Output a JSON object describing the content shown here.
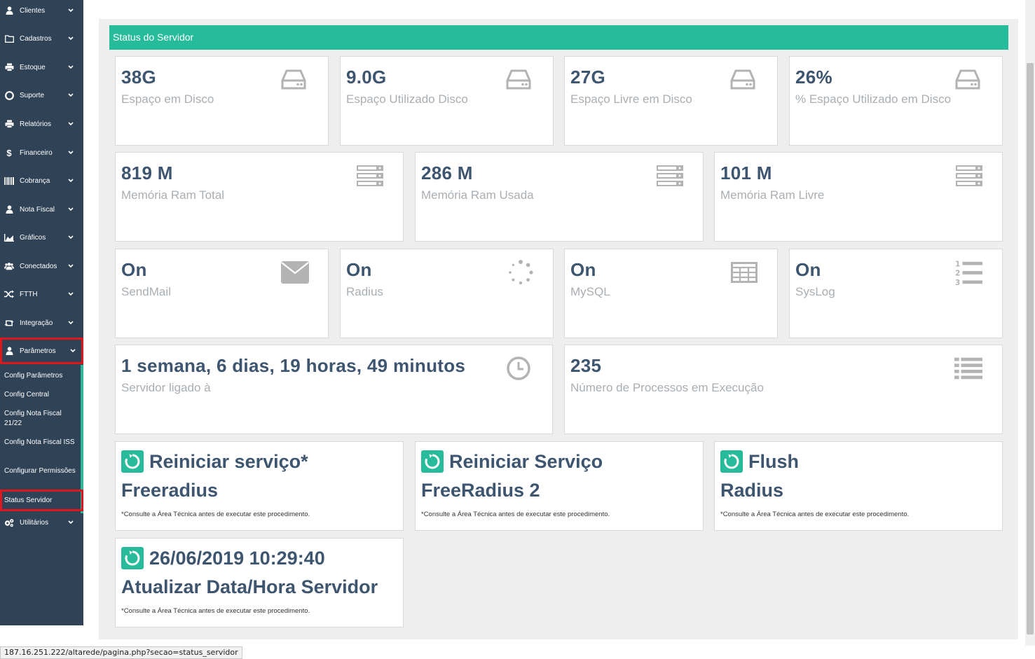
{
  "sidebar": {
    "items": [
      {
        "label": "Clientes",
        "icon": "user-icon"
      },
      {
        "label": "Cadastros",
        "icon": "folder-icon"
      },
      {
        "label": "Estoque",
        "icon": "printer-icon"
      },
      {
        "label": "Suporte",
        "icon": "lifebuoy-icon"
      },
      {
        "label": "Relatórios",
        "icon": "printer-icon"
      },
      {
        "label": "Financeiro",
        "icon": "dollar-icon"
      },
      {
        "label": "Cobrança",
        "icon": "barcode-icon"
      },
      {
        "label": "Nota Fiscal",
        "icon": "user-icon"
      },
      {
        "label": "Gráficos",
        "icon": "area-chart-icon"
      },
      {
        "label": "Conectados",
        "icon": "users-icon"
      },
      {
        "label": "FTTH",
        "icon": "random-icon"
      },
      {
        "label": "Integração",
        "icon": "retweet-icon"
      },
      {
        "label": "Parâmetros",
        "icon": "user-icon"
      },
      {
        "label": "Utilitários",
        "icon": "cogs-icon"
      }
    ],
    "submenu": [
      {
        "label": "Config Parâmetros"
      },
      {
        "label": "Config Central"
      },
      {
        "label": "Config Nota Fiscal 21/22"
      },
      {
        "label": "Config Nota Fiscal ISS"
      },
      {
        "label": "Configurar Permissões"
      },
      {
        "label": "Status Servidor"
      }
    ]
  },
  "panel": {
    "title": "Status do Servidor"
  },
  "disk": [
    {
      "value": "38G",
      "label": "Espaço em Disco",
      "icon": "hdd-icon"
    },
    {
      "value": "9.0G",
      "label": "Espaço Utilizado Disco",
      "icon": "hdd-icon"
    },
    {
      "value": "27G",
      "label": "Espaço Livre em Disco",
      "icon": "hdd-icon"
    },
    {
      "value": "26%",
      "label": "% Espaço Utilizado em Disco",
      "icon": "hdd-icon"
    }
  ],
  "memory": [
    {
      "value": "819 M",
      "label": "Memória Ram Total",
      "icon": "server-icon"
    },
    {
      "value": "286 M",
      "label": "Memória Ram Usada",
      "icon": "server-icon"
    },
    {
      "value": "101 M",
      "label": "Memória Ram Livre",
      "icon": "server-icon"
    }
  ],
  "services": [
    {
      "value": "On",
      "label": "SendMail",
      "icon": "envelope-icon"
    },
    {
      "value": "On",
      "label": "Radius",
      "icon": "spinner-icon"
    },
    {
      "value": "On",
      "label": "MySQL",
      "icon": "table-icon"
    },
    {
      "value": "On",
      "label": "SysLog",
      "icon": "ordered-list-icon"
    }
  ],
  "uptime": {
    "value": "1 semana, 6 dias, 19 horas, 49 minutos",
    "label": "Servidor ligado à",
    "icon": "clock-icon"
  },
  "processes": {
    "value": "235",
    "label": "Número de Processos em Execução",
    "icon": "list-icon"
  },
  "actions": [
    {
      "title": "Reiniciar serviço*",
      "subtitle": "Freeradius",
      "note": "*Consulte a Área Técnica antes de executar este procedimento."
    },
    {
      "title": "Reiniciar Serviço",
      "subtitle": "FreeRadius 2",
      "note": "*Consulte a Área Técnica antes de executar este procedimento."
    },
    {
      "title": "Flush",
      "subtitle": "Radius",
      "note": "*Consulte a Área Técnica antes de executar este procedimento."
    },
    {
      "title": "26/06/2019 10:29:40",
      "subtitle": "Atualizar Data/Hora Servidor",
      "note": "*Consulte a Área Técnica antes de executar este procedimento."
    }
  ],
  "statusbar": {
    "url": "187.16.251.222/altarede/pagina.php?secao=status_servidor"
  },
  "colors": {
    "sidebar": "#2f4256",
    "accent": "#26bb9b",
    "highlight": "#e0161f",
    "value_text": "#3e5570",
    "label_text": "#a9aeb3"
  }
}
